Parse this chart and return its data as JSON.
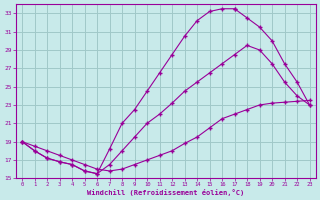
{
  "xlabel": "Windchill (Refroidissement éolien,°C)",
  "bg_color": "#c8eaea",
  "grid_color": "#a0c8c8",
  "line_color": "#990099",
  "xlim": [
    -0.5,
    23.5
  ],
  "ylim": [
    15,
    34
  ],
  "xticks": [
    0,
    1,
    2,
    3,
    4,
    5,
    6,
    7,
    8,
    9,
    10,
    11,
    12,
    13,
    14,
    15,
    16,
    17,
    18,
    19,
    20,
    21,
    22,
    23
  ],
  "yticks": [
    15,
    17,
    19,
    21,
    23,
    25,
    27,
    29,
    31,
    33
  ],
  "curve1_x": [
    0,
    1,
    2,
    3,
    4,
    5,
    6,
    7,
    8,
    9,
    10,
    11,
    12,
    13,
    14,
    15,
    16,
    17
  ],
  "curve1_y": [
    19,
    18,
    17.2,
    16.8,
    16.5,
    15.8,
    15.5,
    18.2,
    21,
    22.5,
    24.5,
    26.5,
    28.5,
    30.5,
    32.2,
    33.2,
    33.5,
    33.5
  ],
  "curve2_x": [
    0,
    1,
    2,
    3,
    4,
    5,
    6,
    7,
    8,
    9,
    10,
    11,
    12,
    13,
    14,
    15,
    16,
    17,
    18,
    19,
    20,
    21,
    22,
    23
  ],
  "curve2_y": [
    19,
    18,
    17.2,
    16.8,
    16.5,
    15.8,
    15.5,
    16.5,
    18,
    19.5,
    21,
    22,
    23.2,
    24.5,
    25.5,
    26.5,
    27.5,
    28.5,
    29.5,
    29,
    27.5,
    25.5,
    24,
    23
  ],
  "curve3_x": [
    0,
    1,
    2,
    3,
    4,
    5,
    6,
    7,
    8,
    9,
    10,
    11,
    12,
    13,
    14,
    15,
    16,
    17,
    18,
    19,
    20,
    21,
    22,
    23
  ],
  "curve3_y": [
    19,
    18.5,
    18,
    17.5,
    17,
    16.5,
    16,
    15.8,
    16,
    16.5,
    17,
    17.5,
    18,
    18.8,
    19.5,
    20.5,
    21.5,
    22,
    22.5,
    23,
    23.2,
    23.3,
    23.4,
    23.5
  ],
  "curve1_end_x": [
    17,
    18,
    19,
    20,
    21,
    22,
    23
  ],
  "curve1_end_y": [
    33.5,
    32.5,
    31.5,
    30,
    27.5,
    25.5,
    23
  ],
  "marker": "+"
}
